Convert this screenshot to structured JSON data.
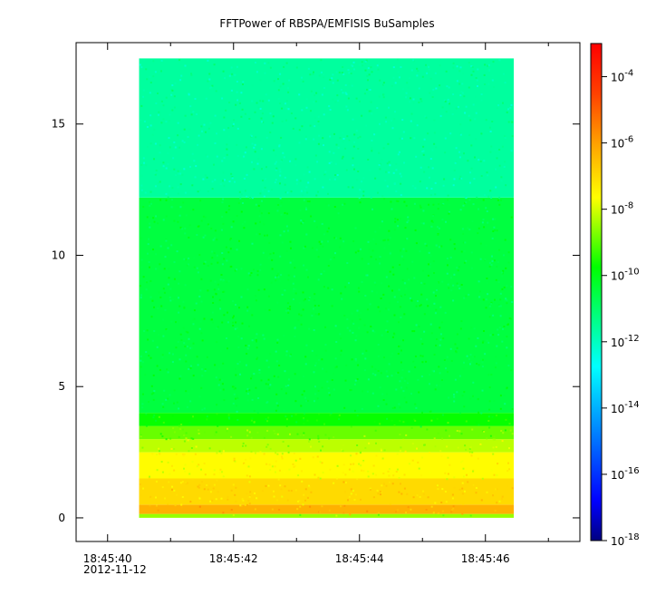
{
  "chart_data": {
    "type": "heatmap",
    "title": "FFTPower of RBSPA/EMFISIS  BuSamples",
    "xlabel": "",
    "ylabel": "",
    "x_tick_labels": [
      "18:45:40",
      "18:45:42",
      "18:45:44",
      "18:45:46"
    ],
    "x_tick_values_s": [
      40,
      42,
      44,
      46
    ],
    "x_minor_tick_values_s": [
      41,
      43,
      45,
      47
    ],
    "x_date_label": "2012-11-12",
    "xlim_s": [
      39.5,
      47.5
    ],
    "x_data_range_s": [
      40.5,
      46.45
    ],
    "ylim": [
      -0.9,
      18.1
    ],
    "y_ticks": [
      0,
      5,
      10,
      15
    ],
    "y_data_range": [
      0,
      17.5
    ],
    "colorbar": {
      "scale": "log",
      "range": [
        1e-18,
        0.001
      ],
      "tick_exponents": [
        -4,
        -6,
        -8,
        -10,
        -12,
        -14,
        -16,
        -18
      ],
      "colormap": "apl_rainbow_black0",
      "colors": [
        "#000080",
        "#0000ff",
        "#00ffff",
        "#00ff00",
        "#ffff00",
        "#ff8000",
        "#ff0000"
      ]
    },
    "bands": [
      {
        "y_from": 0.0,
        "y_to": 0.15,
        "log10_power": -8.5
      },
      {
        "y_from": 0.15,
        "y_to": 0.5,
        "log10_power": -6.3
      },
      {
        "y_from": 0.5,
        "y_to": 1.5,
        "log10_power": -7.0
      },
      {
        "y_from": 1.5,
        "y_to": 2.5,
        "log10_power": -7.6
      },
      {
        "y_from": 2.5,
        "y_to": 3.0,
        "log10_power": -8.2
      },
      {
        "y_from": 3.0,
        "y_to": 3.5,
        "log10_power": -8.9
      },
      {
        "y_from": 3.5,
        "y_to": 4.0,
        "log10_power": -9.7
      },
      {
        "y_from": 4.0,
        "y_to": 12.2,
        "log10_power": -10.5
      },
      {
        "y_from": 12.2,
        "y_to": 17.5,
        "log10_power": -11.6
      }
    ]
  }
}
